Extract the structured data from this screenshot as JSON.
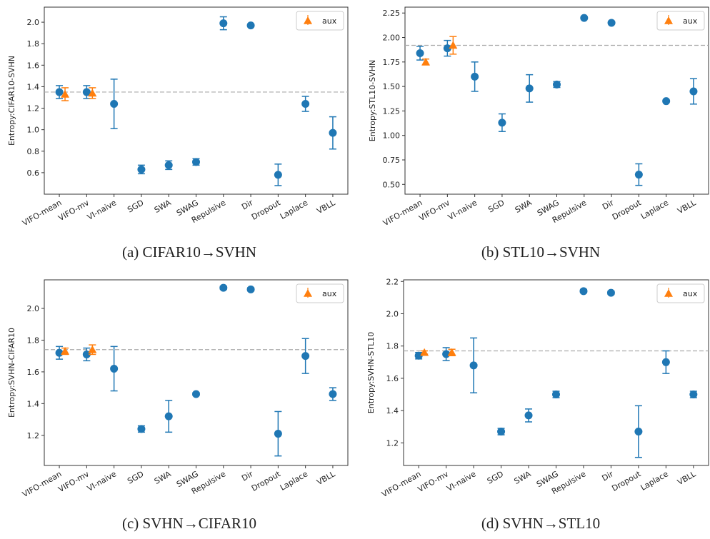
{
  "chart_data": [
    {
      "type": "errorbar",
      "caption": "(a) CIFAR10→SVHN",
      "ylabel": "Entropy:CIFAR10-SVHN",
      "categories": [
        "VIFO-mean",
        "VIFO-mv",
        "VI-naive",
        "SGD",
        "SWA",
        "SWAG",
        "Repulsive",
        "Dir",
        "Dropout",
        "Laplace",
        "VBLL"
      ],
      "series": [
        {
          "color": "#1f77b4",
          "marker": "circle",
          "values": [
            1.35,
            1.35,
            1.24,
            0.63,
            0.67,
            0.7,
            1.99,
            1.97,
            0.58,
            1.24,
            0.97
          ],
          "errors": [
            0.06,
            0.06,
            0.23,
            0.04,
            0.04,
            0.03,
            0.06,
            0.01,
            0.1,
            0.07,
            0.15
          ]
        },
        {
          "name": "aux",
          "color": "#ff7f0e",
          "marker": "triangle",
          "values": [
            1.33,
            1.34,
            null,
            null,
            null,
            null,
            null,
            null,
            null,
            null,
            null
          ],
          "errors": [
            0.06,
            0.05,
            null,
            null,
            null,
            null,
            null,
            null,
            null,
            null,
            null
          ]
        }
      ],
      "reference_line": 1.35,
      "ylim": [
        0.4,
        2.14
      ],
      "yticks": [
        0.6,
        0.8,
        {
          "value": 1,
          "label": "1.0"
        },
        1.2,
        1.4,
        1.6,
        1.8,
        {
          "value": 2,
          "label": "2.0"
        }
      ],
      "legend": "upper right"
    },
    {
      "type": "errorbar",
      "caption": "(b) STL10→SVHN",
      "ylabel": "Entropy:STL10-SVHN",
      "categories": [
        "VIFO-mean",
        "VIFO-mv",
        "VI-naive",
        "SGD",
        "SWA",
        "SWAG",
        "Repulsive",
        "Dir",
        "Dropout",
        "Laplace",
        "VBLL"
      ],
      "series": [
        {
          "color": "#1f77b4",
          "marker": "circle",
          "values": [
            1.84,
            1.89,
            1.6,
            1.13,
            1.48,
            1.52,
            2.2,
            2.15,
            0.6,
            1.35,
            1.45
          ],
          "errors": [
            0.07,
            0.08,
            0.15,
            0.09,
            0.14,
            0.03,
            0.01,
            0.01,
            0.11,
            0.01,
            0.13
          ]
        },
        {
          "name": "aux",
          "color": "#ff7f0e",
          "marker": "triangle",
          "values": [
            1.75,
            1.92,
            null,
            null,
            null,
            null,
            null,
            null,
            null,
            null,
            null
          ],
          "errors": [
            0.03,
            0.09,
            null,
            null,
            null,
            null,
            null,
            null,
            null,
            null,
            null
          ]
        }
      ],
      "reference_line": 1.92,
      "ylim": [
        0.4,
        2.31
      ],
      "yticks": [
        {
          "value": 0.5,
          "label": "0.50"
        },
        0.75,
        {
          "value": 1,
          "label": "1.00"
        },
        1.25,
        {
          "value": 1.5,
          "label": "1.50"
        },
        1.75,
        {
          "value": 2,
          "label": "2.00"
        },
        2.25
      ],
      "legend": "upper right"
    },
    {
      "type": "errorbar",
      "caption": "(c) SVHN→CIFAR10",
      "ylabel": "Entropy:SVHN-CIFAR10",
      "categories": [
        "VIFO-mean",
        "VIFO-mv",
        "VI-naive",
        "SGD",
        "SWA",
        "SWAG",
        "Repulsive",
        "Dir",
        "Dropout",
        "Laplace",
        "VBLL"
      ],
      "series": [
        {
          "color": "#1f77b4",
          "marker": "circle",
          "values": [
            1.72,
            1.71,
            1.62,
            1.24,
            1.32,
            1.46,
            2.13,
            2.12,
            1.21,
            1.7,
            1.46
          ],
          "errors": [
            0.04,
            0.04,
            0.14,
            0.02,
            0.1,
            0.01,
            0.01,
            0.01,
            0.14,
            0.11,
            0.04
          ]
        },
        {
          "name": "aux",
          "color": "#ff7f0e",
          "marker": "triangle",
          "values": [
            1.73,
            1.74,
            null,
            null,
            null,
            null,
            null,
            null,
            null,
            null,
            null
          ],
          "errors": [
            0.02,
            0.03,
            null,
            null,
            null,
            null,
            null,
            null,
            null,
            null,
            null
          ]
        }
      ],
      "reference_line": 1.74,
      "ylim": [
        1.01,
        2.18
      ],
      "yticks": [
        1.2,
        1.4,
        1.6,
        1.8,
        {
          "value": 2,
          "label": "2.0"
        }
      ],
      "legend": "upper right"
    },
    {
      "type": "errorbar",
      "caption": "(d) SVHN→STL10",
      "ylabel": "Entropy:SVHN-STL10",
      "categories": [
        "VIFO-mean",
        "VIFO-mv",
        "VI-naive",
        "SGD",
        "SWA",
        "SWAG",
        "Repulsive",
        "Dir",
        "Dropout",
        "Laplace",
        "VBLL"
      ],
      "series": [
        {
          "color": "#1f77b4",
          "marker": "circle",
          "values": [
            1.74,
            1.75,
            1.68,
            1.27,
            1.37,
            1.5,
            2.14,
            2.13,
            1.27,
            1.7,
            1.5
          ],
          "errors": [
            0.02,
            0.04,
            0.17,
            0.02,
            0.04,
            0.02,
            0.01,
            0.01,
            0.16,
            0.07,
            0.02
          ]
        },
        {
          "name": "aux",
          "color": "#ff7f0e",
          "marker": "triangle",
          "values": [
            1.76,
            1.76,
            null,
            null,
            null,
            null,
            null,
            null,
            null,
            null,
            null
          ],
          "errors": [
            0.01,
            0.02,
            null,
            null,
            null,
            null,
            null,
            null,
            null,
            null,
            null
          ]
        }
      ],
      "reference_line": 1.77,
      "ylim": [
        1.06,
        2.21
      ],
      "yticks": [
        1.2,
        1.4,
        1.6,
        1.8,
        {
          "value": 2,
          "label": "2.0"
        },
        2.2
      ],
      "legend": "upper right"
    }
  ]
}
